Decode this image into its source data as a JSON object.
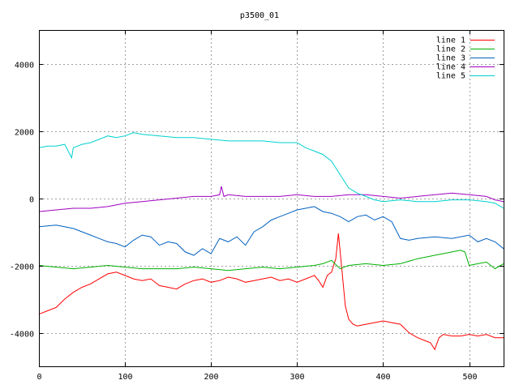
{
  "chart_data": {
    "type": "line",
    "title": "p3500_01",
    "xlabel": "",
    "ylabel": "",
    "xlim": [
      0,
      540
    ],
    "ylim": [
      -5000,
      5000
    ],
    "x_ticks": [
      0,
      100,
      200,
      300,
      400,
      500
    ],
    "y_ticks": [
      -4000,
      -2000,
      0,
      2000,
      4000
    ],
    "grid": true,
    "legend_position": "top-right",
    "series": [
      {
        "name": "line 1",
        "color": "#ff0000",
        "x": [
          0,
          10,
          20,
          30,
          40,
          50,
          60,
          70,
          80,
          90,
          100,
          110,
          120,
          130,
          140,
          150,
          160,
          170,
          180,
          190,
          200,
          210,
          220,
          230,
          240,
          250,
          260,
          270,
          280,
          290,
          300,
          310,
          320,
          325,
          330,
          335,
          340,
          345,
          348,
          352,
          356,
          360,
          365,
          370,
          380,
          390,
          400,
          410,
          420,
          430,
          440,
          450,
          455,
          460,
          465,
          470,
          480,
          490,
          500,
          510,
          520,
          530,
          540
        ],
        "values": [
          -3450,
          -3350,
          -3250,
          -3000,
          -2800,
          -2650,
          -2550,
          -2400,
          -2250,
          -2200,
          -2300,
          -2400,
          -2450,
          -2400,
          -2600,
          -2650,
          -2700,
          -2550,
          -2450,
          -2400,
          -2500,
          -2450,
          -2350,
          -2400,
          -2500,
          -2450,
          -2400,
          -2350,
          -2450,
          -2400,
          -2500,
          -2400,
          -2300,
          -2450,
          -2650,
          -2300,
          -2200,
          -1800,
          -1050,
          -2100,
          -3200,
          -3600,
          -3750,
          -3800,
          -3750,
          -3700,
          -3650,
          -3700,
          -3750,
          -4000,
          -4150,
          -4250,
          -4300,
          -4500,
          -4150,
          -4050,
          -4100,
          -4100,
          -4050,
          -4100,
          -4050,
          -4150,
          -4150
        ]
      },
      {
        "name": "line 2",
        "color": "#00b000",
        "x": [
          0,
          20,
          40,
          60,
          80,
          100,
          120,
          140,
          160,
          180,
          200,
          220,
          240,
          260,
          280,
          300,
          320,
          330,
          340,
          350,
          360,
          380,
          400,
          420,
          440,
          460,
          480,
          490,
          495,
          500,
          510,
          520,
          530,
          540
        ],
        "values": [
          -2000,
          -2050,
          -2100,
          -2050,
          -2000,
          -2050,
          -2100,
          -2100,
          -2100,
          -2050,
          -2100,
          -2150,
          -2100,
          -2050,
          -2100,
          -2050,
          -2000,
          -1950,
          -1850,
          -2100,
          -2000,
          -1950,
          -2000,
          -1950,
          -1800,
          -1700,
          -1600,
          -1550,
          -1600,
          -2000,
          -1950,
          -1900,
          -2100,
          -1950
        ]
      },
      {
        "name": "line 3",
        "color": "#0060c0",
        "x": [
          0,
          20,
          40,
          60,
          70,
          80,
          90,
          100,
          110,
          120,
          130,
          140,
          150,
          160,
          170,
          180,
          190,
          200,
          210,
          220,
          230,
          240,
          250,
          260,
          270,
          280,
          290,
          300,
          310,
          320,
          330,
          340,
          350,
          360,
          370,
          380,
          390,
          400,
          410,
          420,
          430,
          440,
          460,
          480,
          500,
          510,
          520,
          530,
          540
        ],
        "values": [
          -850,
          -800,
          -900,
          -1100,
          -1200,
          -1300,
          -1350,
          -1450,
          -1250,
          -1100,
          -1150,
          -1400,
          -1300,
          -1350,
          -1600,
          -1700,
          -1500,
          -1650,
          -1200,
          -1300,
          -1150,
          -1400,
          -1000,
          -850,
          -650,
          -550,
          -450,
          -350,
          -300,
          -250,
          -400,
          -450,
          -550,
          -700,
          -550,
          -500,
          -650,
          -550,
          -700,
          -1200,
          -1250,
          -1200,
          -1150,
          -1200,
          -1100,
          -1300,
          -1200,
          -1300,
          -1500
        ]
      },
      {
        "name": "line 4",
        "color": "#a000c0",
        "x": [
          0,
          20,
          40,
          60,
          80,
          100,
          120,
          140,
          160,
          180,
          200,
          210,
          212,
          215,
          220,
          240,
          260,
          280,
          300,
          320,
          340,
          360,
          380,
          400,
          420,
          440,
          460,
          480,
          500,
          520,
          530,
          540
        ],
        "values": [
          -400,
          -350,
          -300,
          -300,
          -250,
          -150,
          -100,
          -50,
          0,
          50,
          50,
          100,
          350,
          50,
          100,
          50,
          50,
          50,
          100,
          50,
          50,
          100,
          100,
          50,
          0,
          50,
          100,
          150,
          100,
          50,
          -50,
          -100
        ]
      },
      {
        "name": "line 5",
        "color": "#00d0d0",
        "x": [
          0,
          10,
          20,
          30,
          38,
          40,
          45,
          50,
          60,
          70,
          80,
          90,
          100,
          110,
          120,
          140,
          160,
          180,
          200,
          220,
          240,
          260,
          280,
          300,
          310,
          320,
          330,
          340,
          350,
          360,
          370,
          380,
          390,
          400,
          420,
          440,
          460,
          480,
          500,
          520,
          530,
          540
        ],
        "values": [
          1500,
          1550,
          1550,
          1600,
          1200,
          1500,
          1550,
          1600,
          1650,
          1750,
          1850,
          1800,
          1850,
          1950,
          1900,
          1850,
          1800,
          1800,
          1750,
          1700,
          1700,
          1700,
          1650,
          1650,
          1500,
          1400,
          1300,
          1100,
          700,
          300,
          150,
          50,
          -50,
          -100,
          -50,
          -100,
          -100,
          -50,
          -50,
          -100,
          -150,
          -300
        ]
      }
    ]
  }
}
